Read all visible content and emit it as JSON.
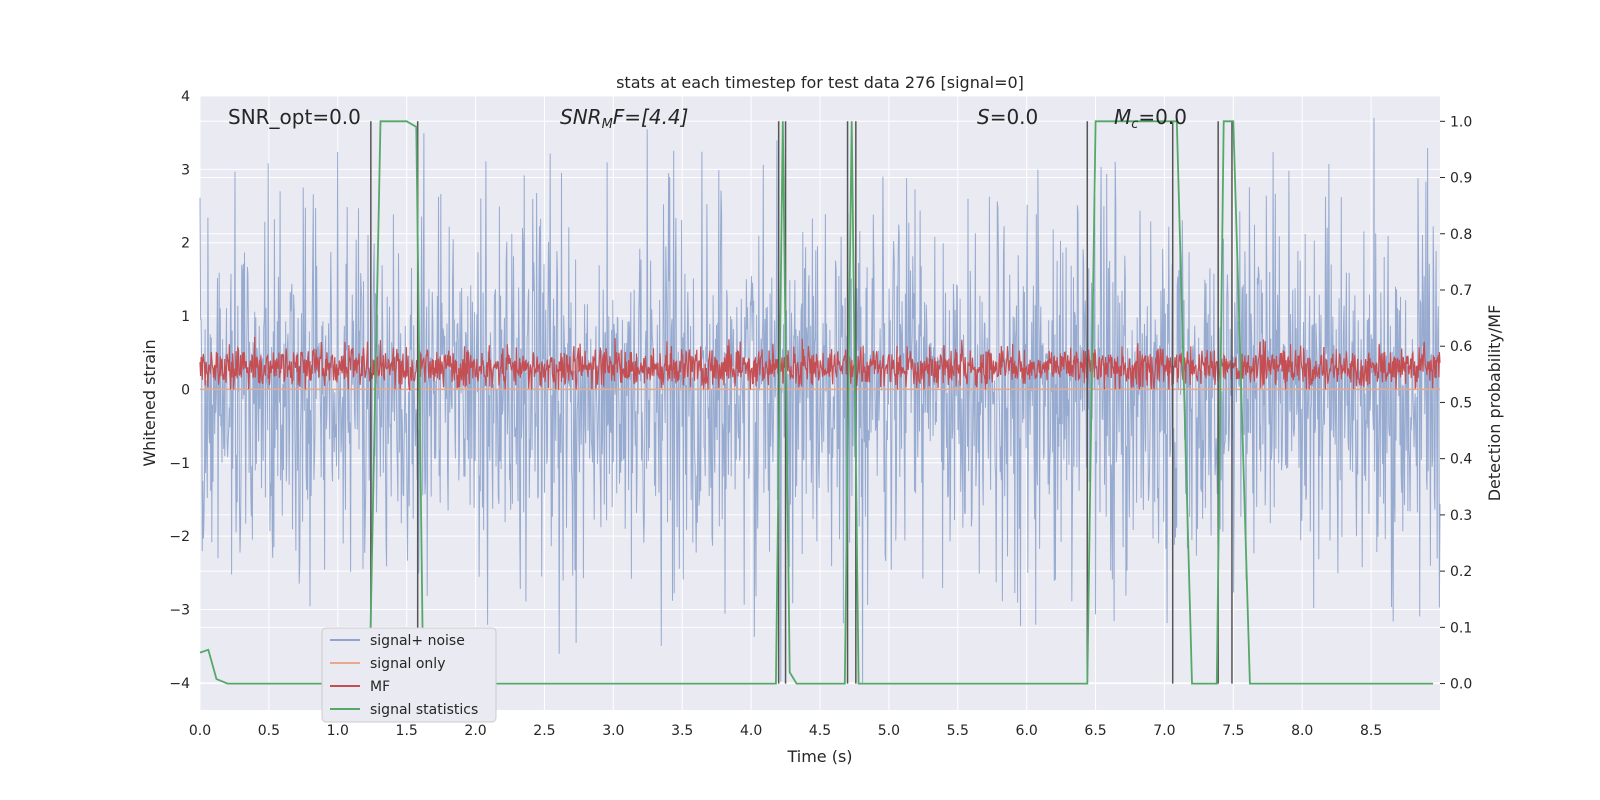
{
  "chart_data": {
    "type": "line",
    "title": "stats at each timestep for test data 276 [signal=0]",
    "xlabel": "Time (s)",
    "ylabel": "Whitened strain",
    "y2label": "Detection probability/MF",
    "xlim": [
      0.0,
      9.0
    ],
    "ylim": [
      -4.37,
      4.0
    ],
    "y2lim": [
      -0.047,
      1.045
    ],
    "xticks": [
      "0.0",
      "0.5",
      "1.0",
      "1.5",
      "2.0",
      "2.5",
      "3.0",
      "3.5",
      "4.0",
      "4.5",
      "5.0",
      "5.5",
      "6.0",
      "6.5",
      "7.0",
      "7.5",
      "8.0",
      "8.5"
    ],
    "yticks": [
      "4",
      "3",
      "2",
      "1",
      "0",
      "−1",
      "−2",
      "−3",
      "−4"
    ],
    "y2ticks": [
      "1.0",
      "0.9",
      "0.8",
      "0.7",
      "0.6",
      "0.5",
      "0.4",
      "0.3",
      "0.2",
      "0.1",
      "0.0"
    ],
    "grid": true,
    "legend_position": "lower-left",
    "annotations": {
      "snr_opt": "SNR_opt=0.0",
      "snr_mf_main": "SNR",
      "snr_mf_sub": "M",
      "snr_mf_rest": "F=[4.4]",
      "s_main": "S",
      "s_rest": "=0.0",
      "mc_main": "M",
      "mc_sub": "c",
      "mc_rest": "=0.0"
    },
    "series": [
      {
        "name": "signal+ noise",
        "color": "#8ea4cc",
        "description_axis": "left",
        "envelope_amplitude": 2.5,
        "peak_extremes": [
          3.35,
          -3.4,
          -4.0,
          3.7
        ]
      },
      {
        "name": "signal only",
        "color": "#e8a98b",
        "description_axis": "left",
        "values": [
          0.0,
          0.0
        ]
      },
      {
        "name": "MF",
        "color": "#c44e52",
        "description_axis": "left",
        "baseline": 0.3,
        "range": [
          0.0,
          0.85
        ]
      },
      {
        "name": "signal statistics",
        "color": "#55a868",
        "description_axis": "right",
        "x": [
          0.0,
          0.06,
          0.12,
          0.2,
          1.23,
          1.31,
          1.5,
          1.57,
          1.62,
          4.18,
          4.23,
          4.28,
          4.33,
          4.4,
          4.68,
          4.73,
          4.78,
          4.82,
          6.44,
          6.5,
          7.04,
          7.09,
          7.2,
          7.38,
          7.43,
          7.5,
          7.62,
          8.95
        ],
        "values": [
          0.055,
          0.06,
          0.008,
          0.0,
          0.0,
          1.0,
          1.0,
          0.99,
          0.0,
          0.0,
          1.0,
          0.02,
          0.0,
          0.0,
          0.0,
          1.0,
          0.0,
          0.0,
          0.0,
          1.0,
          1.0,
          1.0,
          0.0,
          0.0,
          1.0,
          1.0,
          0.0,
          0.0
        ]
      }
    ],
    "vertical_markers": {
      "color": "#555555",
      "lines": [
        {
          "x": 1.24,
          "y2_range": [
            0.0,
            1.0
          ]
        },
        {
          "x": 1.58,
          "y2_range": [
            0.0,
            1.0
          ]
        },
        {
          "x": 4.2,
          "y2_range": [
            0.0,
            1.0
          ]
        },
        {
          "x": 4.25,
          "y2_range": [
            0.0,
            1.0
          ]
        },
        {
          "x": 4.7,
          "y2_range": [
            0.0,
            1.0
          ]
        },
        {
          "x": 4.76,
          "y2_range": [
            0.0,
            1.0
          ]
        },
        {
          "x": 6.44,
          "y2_range": [
            0.0,
            1.0
          ]
        },
        {
          "x": 7.06,
          "y2_range": [
            0.0,
            1.0
          ]
        },
        {
          "x": 7.39,
          "y2_range": [
            0.0,
            1.0
          ]
        },
        {
          "x": 7.49,
          "y2_range": [
            0.0,
            1.0
          ]
        }
      ]
    }
  }
}
